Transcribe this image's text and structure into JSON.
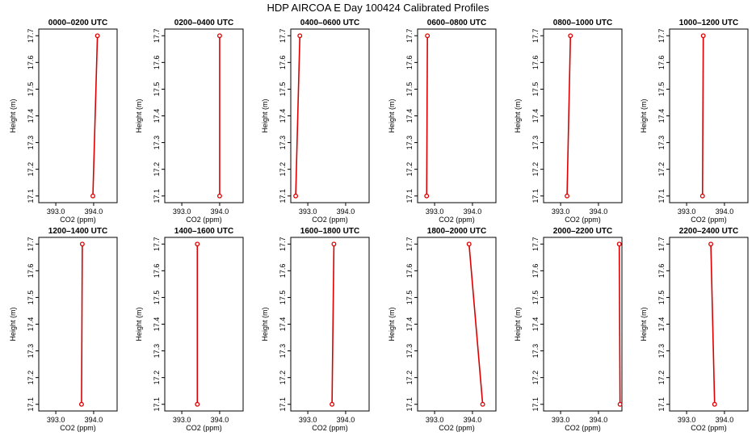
{
  "figure_title": "HDP AIRCOA E  Day 100424  Calibrated Profiles",
  "colors": {
    "series": "#dd0000",
    "frame": "#000000"
  },
  "chart_data": [
    {
      "type": "line",
      "title": "0000–0200 UTC",
      "xlabel": "CO2 (ppm)",
      "ylabel": "Height (m)",
      "xlim": [
        392.55,
        394.62
      ],
      "ylim": [
        17.075,
        17.725
      ],
      "xticks": [
        "393.0",
        "394.0"
      ],
      "xtick_values": [
        393.0,
        394.0
      ],
      "yticks": [
        "17.1",
        "17.2",
        "17.3",
        "17.4",
        "17.5",
        "17.6",
        "17.7"
      ],
      "ytick_values": [
        17.1,
        17.2,
        17.3,
        17.4,
        17.5,
        17.6,
        17.7
      ],
      "points": [
        {
          "x": 393.98,
          "y": 17.1
        },
        {
          "x": 394.1,
          "y": 17.7
        }
      ]
    },
    {
      "type": "line",
      "title": "0200–0400 UTC",
      "xlabel": "CO2 (ppm)",
      "ylabel": "Height (m)",
      "xlim": [
        392.55,
        394.62
      ],
      "ylim": [
        17.075,
        17.725
      ],
      "xticks": [
        "393.0",
        "394.0"
      ],
      "xtick_values": [
        393.0,
        394.0
      ],
      "yticks": [
        "17.1",
        "17.2",
        "17.3",
        "17.4",
        "17.5",
        "17.6",
        "17.7"
      ],
      "ytick_values": [
        17.1,
        17.2,
        17.3,
        17.4,
        17.5,
        17.6,
        17.7
      ],
      "points": [
        {
          "x": 394.0,
          "y": 17.1
        },
        {
          "x": 394.0,
          "y": 17.7
        }
      ]
    },
    {
      "type": "line",
      "title": "0400–0600 UTC",
      "xlabel": "CO2 (ppm)",
      "ylabel": "Height (m)",
      "xlim": [
        392.55,
        394.62
      ],
      "ylim": [
        17.075,
        17.725
      ],
      "xticks": [
        "393.0",
        "394.0"
      ],
      "xtick_values": [
        393.0,
        394.0
      ],
      "yticks": [
        "17.1",
        "17.2",
        "17.3",
        "17.4",
        "17.5",
        "17.6",
        "17.7"
      ],
      "ytick_values": [
        17.1,
        17.2,
        17.3,
        17.4,
        17.5,
        17.6,
        17.7
      ],
      "points": [
        {
          "x": 392.68,
          "y": 17.1
        },
        {
          "x": 392.79,
          "y": 17.7
        }
      ]
    },
    {
      "type": "line",
      "title": "0600–0800 UTC",
      "xlabel": "CO2 (ppm)",
      "ylabel": "Height (m)",
      "xlim": [
        392.55,
        394.62
      ],
      "ylim": [
        17.075,
        17.725
      ],
      "xticks": [
        "393.0",
        "394.0"
      ],
      "xtick_values": [
        393.0,
        394.0
      ],
      "yticks": [
        "17.1",
        "17.2",
        "17.3",
        "17.4",
        "17.5",
        "17.6",
        "17.7"
      ],
      "ytick_values": [
        17.1,
        17.2,
        17.3,
        17.4,
        17.5,
        17.6,
        17.7
      ],
      "points": [
        {
          "x": 392.79,
          "y": 17.1
        },
        {
          "x": 392.81,
          "y": 17.7
        }
      ]
    },
    {
      "type": "line",
      "title": "0800–1000 UTC",
      "xlabel": "CO2 (ppm)",
      "ylabel": "Height (m)",
      "xlim": [
        392.55,
        394.62
      ],
      "ylim": [
        17.075,
        17.725
      ],
      "xticks": [
        "393.0",
        "394.0"
      ],
      "xtick_values": [
        393.0,
        394.0
      ],
      "yticks": [
        "17.1",
        "17.2",
        "17.3",
        "17.4",
        "17.5",
        "17.6",
        "17.7"
      ],
      "ytick_values": [
        17.1,
        17.2,
        17.3,
        17.4,
        17.5,
        17.6,
        17.7
      ],
      "points": [
        {
          "x": 393.17,
          "y": 17.1
        },
        {
          "x": 393.26,
          "y": 17.7
        }
      ]
    },
    {
      "type": "line",
      "title": "1000–1200 UTC",
      "xlabel": "CO2 (ppm)",
      "ylabel": "Height (m)",
      "xlim": [
        392.55,
        394.62
      ],
      "ylim": [
        17.075,
        17.725
      ],
      "xticks": [
        "393.0",
        "394.0"
      ],
      "xtick_values": [
        393.0,
        394.0
      ],
      "yticks": [
        "17.1",
        "17.2",
        "17.3",
        "17.4",
        "17.5",
        "17.6",
        "17.7"
      ],
      "ytick_values": [
        17.1,
        17.2,
        17.3,
        17.4,
        17.5,
        17.6,
        17.7
      ],
      "points": [
        {
          "x": 393.42,
          "y": 17.1
        },
        {
          "x": 393.44,
          "y": 17.7
        }
      ]
    },
    {
      "type": "line",
      "title": "1200–1400 UTC",
      "xlabel": "CO2 (ppm)",
      "ylabel": "Height (m)",
      "xlim": [
        392.55,
        394.62
      ],
      "ylim": [
        17.075,
        17.725
      ],
      "xticks": [
        "393.0",
        "394.0"
      ],
      "xtick_values": [
        393.0,
        394.0
      ],
      "yticks": [
        "17.1",
        "17.2",
        "17.3",
        "17.4",
        "17.5",
        "17.6",
        "17.7"
      ],
      "ytick_values": [
        17.1,
        17.2,
        17.3,
        17.4,
        17.5,
        17.6,
        17.7
      ],
      "points": [
        {
          "x": 393.68,
          "y": 17.1
        },
        {
          "x": 393.7,
          "y": 17.7
        }
      ]
    },
    {
      "type": "line",
      "title": "1400–1600 UTC",
      "xlabel": "CO2 (ppm)",
      "ylabel": "Height (m)",
      "xlim": [
        392.55,
        394.62
      ],
      "ylim": [
        17.075,
        17.725
      ],
      "xticks": [
        "393.0",
        "394.0"
      ],
      "xtick_values": [
        393.0,
        394.0
      ],
      "yticks": [
        "17.1",
        "17.2",
        "17.3",
        "17.4",
        "17.5",
        "17.6",
        "17.7"
      ],
      "ytick_values": [
        17.1,
        17.2,
        17.3,
        17.4,
        17.5,
        17.6,
        17.7
      ],
      "points": [
        {
          "x": 393.41,
          "y": 17.1
        },
        {
          "x": 393.41,
          "y": 17.7
        }
      ]
    },
    {
      "type": "line",
      "title": "1600–1800 UTC",
      "xlabel": "CO2 (ppm)",
      "ylabel": "Height (m)",
      "xlim": [
        392.55,
        394.62
      ],
      "ylim": [
        17.075,
        17.725
      ],
      "xticks": [
        "393.0",
        "394.0"
      ],
      "xtick_values": [
        393.0,
        394.0
      ],
      "yticks": [
        "17.1",
        "17.2",
        "17.3",
        "17.4",
        "17.5",
        "17.6",
        "17.7"
      ],
      "ytick_values": [
        17.1,
        17.2,
        17.3,
        17.4,
        17.5,
        17.6,
        17.7
      ],
      "points": [
        {
          "x": 393.64,
          "y": 17.1
        },
        {
          "x": 393.69,
          "y": 17.7
        }
      ]
    },
    {
      "type": "line",
      "title": "1800–2000 UTC",
      "xlabel": "CO2 (ppm)",
      "ylabel": "Height (m)",
      "xlim": [
        392.55,
        394.62
      ],
      "ylim": [
        17.075,
        17.725
      ],
      "xticks": [
        "393.0",
        "394.0"
      ],
      "xtick_values": [
        393.0,
        394.0
      ],
      "yticks": [
        "17.1",
        "17.2",
        "17.3",
        "17.4",
        "17.5",
        "17.6",
        "17.7"
      ],
      "ytick_values": [
        17.1,
        17.2,
        17.3,
        17.4,
        17.5,
        17.6,
        17.7
      ],
      "points": [
        {
          "x": 394.27,
          "y": 17.1
        },
        {
          "x": 393.91,
          "y": 17.7
        }
      ]
    },
    {
      "type": "line",
      "title": "2000–2200 UTC",
      "xlabel": "CO2 (ppm)",
      "ylabel": "Height (m)",
      "xlim": [
        392.55,
        394.62
      ],
      "ylim": [
        17.075,
        17.725
      ],
      "xticks": [
        "393.0",
        "394.0"
      ],
      "xtick_values": [
        393.0,
        394.0
      ],
      "yticks": [
        "17.1",
        "17.2",
        "17.3",
        "17.4",
        "17.5",
        "17.6",
        "17.7"
      ],
      "ytick_values": [
        17.1,
        17.2,
        17.3,
        17.4,
        17.5,
        17.6,
        17.7
      ],
      "points": [
        {
          "x": 394.57,
          "y": 17.1
        },
        {
          "x": 394.55,
          "y": 17.7
        }
      ]
    },
    {
      "type": "line",
      "title": "2200–2400 UTC",
      "xlabel": "CO2 (ppm)",
      "ylabel": "Height (m)",
      "xlim": [
        392.55,
        394.62
      ],
      "ylim": [
        17.075,
        17.725
      ],
      "xticks": [
        "393.0",
        "394.0"
      ],
      "xtick_values": [
        393.0,
        394.0
      ],
      "yticks": [
        "17.1",
        "17.2",
        "17.3",
        "17.4",
        "17.5",
        "17.6",
        "17.7"
      ],
      "ytick_values": [
        17.1,
        17.2,
        17.3,
        17.4,
        17.5,
        17.6,
        17.7
      ],
      "points": [
        {
          "x": 393.74,
          "y": 17.1
        },
        {
          "x": 393.64,
          "y": 17.7
        }
      ]
    }
  ]
}
